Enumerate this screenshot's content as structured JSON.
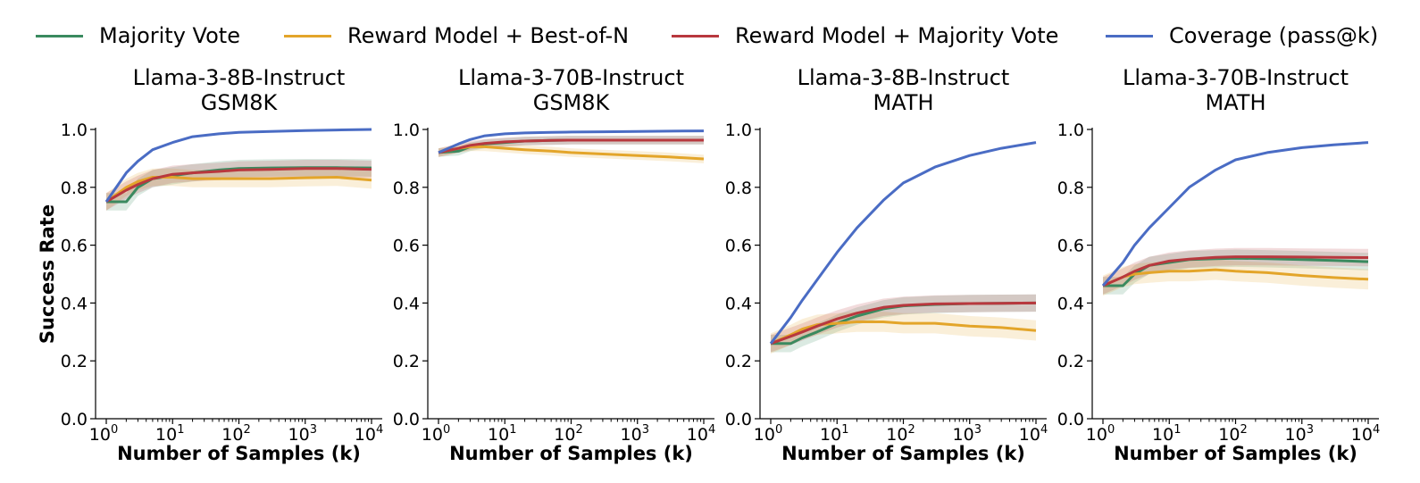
{
  "colors": {
    "majority_vote": "#3a8a5f",
    "rm_best_of_n": "#e3a52a",
    "rm_majority_vote": "#b8383e",
    "coverage": "#4a6cc4"
  },
  "legend": [
    {
      "label": "Majority Vote",
      "color_key": "majority_vote"
    },
    {
      "label": "Reward Model + Best-of-N",
      "color_key": "rm_best_of_n"
    },
    {
      "label": "Reward Model + Majority Vote",
      "color_key": "rm_majority_vote"
    },
    {
      "label": "Coverage (pass@k)",
      "color_key": "coverage"
    }
  ],
  "chart_data": [
    {
      "type": "line",
      "title_line1": "Llama-3-8B-Instruct",
      "title_line2": "GSM8K",
      "xlabel": "Number of Samples (k)",
      "ylabel": "Success Rate",
      "xscale": "log",
      "xlim": [
        1,
        10000
      ],
      "ylim": [
        0,
        1
      ],
      "xticks": [
        "10^0",
        "10^1",
        "10^2",
        "10^3",
        "10^4"
      ],
      "yticks": [
        "0.0",
        "0.2",
        "0.4",
        "0.6",
        "0.8",
        "1.0"
      ],
      "x": [
        1,
        2,
        3,
        5,
        10,
        20,
        50,
        100,
        300,
        1000,
        3000,
        10000
      ],
      "series": [
        {
          "key": "majority_vote",
          "band": 0.03,
          "values": [
            0.75,
            0.75,
            0.8,
            0.83,
            0.84,
            0.85,
            0.86,
            0.865,
            0.867,
            0.868,
            0.868,
            0.867
          ]
        },
        {
          "key": "rm_best_of_n",
          "band": 0.03,
          "values": [
            0.75,
            0.8,
            0.82,
            0.835,
            0.835,
            0.83,
            0.83,
            0.83,
            0.83,
            0.833,
            0.835,
            0.825
          ]
        },
        {
          "key": "rm_majority_vote",
          "band": 0.03,
          "values": [
            0.75,
            0.79,
            0.81,
            0.83,
            0.845,
            0.85,
            0.855,
            0.86,
            0.862,
            0.865,
            0.865,
            0.862
          ]
        },
        {
          "key": "coverage",
          "band": 0,
          "values": [
            0.75,
            0.85,
            0.89,
            0.93,
            0.955,
            0.975,
            0.985,
            0.99,
            0.993,
            0.996,
            0.998,
            1.0
          ]
        }
      ]
    },
    {
      "type": "line",
      "title_line1": "Llama-3-70B-Instruct",
      "title_line2": "GSM8K",
      "xlabel": "Number of Samples (k)",
      "ylabel": "",
      "xscale": "log",
      "xlim": [
        1,
        10000
      ],
      "ylim": [
        0,
        1
      ],
      "xticks": [
        "10^0",
        "10^1",
        "10^2",
        "10^3",
        "10^4"
      ],
      "yticks": [
        "0.0",
        "0.2",
        "0.4",
        "0.6",
        "0.8",
        "1.0"
      ],
      "x": [
        1,
        2,
        3,
        5,
        10,
        20,
        50,
        100,
        300,
        1000,
        3000,
        10000
      ],
      "series": [
        {
          "key": "majority_vote",
          "band": 0.015,
          "values": [
            0.92,
            0.925,
            0.94,
            0.95,
            0.955,
            0.96,
            0.962,
            0.963,
            0.963,
            0.963,
            0.963,
            0.963
          ]
        },
        {
          "key": "rm_best_of_n",
          "band": 0.015,
          "values": [
            0.92,
            0.935,
            0.94,
            0.94,
            0.935,
            0.93,
            0.925,
            0.92,
            0.915,
            0.91,
            0.905,
            0.898
          ]
        },
        {
          "key": "rm_majority_vote",
          "band": 0.015,
          "values": [
            0.92,
            0.935,
            0.945,
            0.952,
            0.957,
            0.96,
            0.962,
            0.963,
            0.963,
            0.963,
            0.963,
            0.963
          ]
        },
        {
          "key": "coverage",
          "band": 0,
          "values": [
            0.92,
            0.95,
            0.965,
            0.978,
            0.985,
            0.988,
            0.99,
            0.991,
            0.992,
            0.993,
            0.994,
            0.995
          ]
        }
      ]
    },
    {
      "type": "line",
      "title_line1": "Llama-3-8B-Instruct",
      "title_line2": "MATH",
      "xlabel": "Number of Samples (k)",
      "ylabel": "",
      "xscale": "log",
      "xlim": [
        1,
        10000
      ],
      "ylim": [
        0,
        1
      ],
      "xticks": [
        "10^0",
        "10^1",
        "10^2",
        "10^3",
        "10^4"
      ],
      "yticks": [
        "0.0",
        "0.2",
        "0.4",
        "0.6",
        "0.8",
        "1.0"
      ],
      "x": [
        1,
        2,
        3,
        5,
        10,
        20,
        50,
        100,
        300,
        1000,
        3000,
        10000
      ],
      "series": [
        {
          "key": "majority_vote",
          "band": 0.03,
          "values": [
            0.26,
            0.26,
            0.28,
            0.3,
            0.33,
            0.355,
            0.38,
            0.39,
            0.395,
            0.398,
            0.399,
            0.4
          ]
        },
        {
          "key": "rm_best_of_n",
          "band": 0.035,
          "values": [
            0.26,
            0.29,
            0.31,
            0.325,
            0.33,
            0.335,
            0.335,
            0.33,
            0.33,
            0.32,
            0.315,
            0.305
          ]
        },
        {
          "key": "rm_majority_vote",
          "band": 0.03,
          "values": [
            0.26,
            0.285,
            0.3,
            0.32,
            0.345,
            0.365,
            0.385,
            0.392,
            0.397,
            0.398,
            0.399,
            0.4
          ]
        },
        {
          "key": "coverage",
          "band": 0,
          "values": [
            0.26,
            0.35,
            0.41,
            0.48,
            0.575,
            0.66,
            0.755,
            0.815,
            0.87,
            0.91,
            0.935,
            0.955
          ]
        }
      ]
    },
    {
      "type": "line",
      "title_line1": "Llama-3-70B-Instruct",
      "title_line2": "MATH",
      "xlabel": "Number of Samples (k)",
      "ylabel": "",
      "xscale": "log",
      "xlim": [
        1,
        10000
      ],
      "ylim": [
        0,
        1
      ],
      "xticks": [
        "10^0",
        "10^1",
        "10^2",
        "10^3",
        "10^4"
      ],
      "yticks": [
        "0.0",
        "0.2",
        "0.4",
        "0.6",
        "0.8",
        "1.0"
      ],
      "x": [
        1,
        2,
        3,
        5,
        10,
        20,
        50,
        100,
        300,
        1000,
        3000,
        10000
      ],
      "series": [
        {
          "key": "majority_vote",
          "band": 0.03,
          "values": [
            0.46,
            0.46,
            0.5,
            0.53,
            0.54,
            0.55,
            0.553,
            0.555,
            0.553,
            0.55,
            0.547,
            0.543
          ]
        },
        {
          "key": "rm_best_of_n",
          "band": 0.035,
          "values": [
            0.46,
            0.49,
            0.5,
            0.505,
            0.51,
            0.51,
            0.515,
            0.51,
            0.505,
            0.495,
            0.488,
            0.482
          ]
        },
        {
          "key": "rm_majority_vote",
          "band": 0.03,
          "values": [
            0.46,
            0.49,
            0.51,
            0.53,
            0.545,
            0.552,
            0.558,
            0.56,
            0.56,
            0.559,
            0.558,
            0.557
          ]
        },
        {
          "key": "coverage",
          "band": 0,
          "values": [
            0.46,
            0.54,
            0.6,
            0.66,
            0.73,
            0.8,
            0.86,
            0.895,
            0.92,
            0.937,
            0.947,
            0.955
          ]
        }
      ]
    }
  ]
}
